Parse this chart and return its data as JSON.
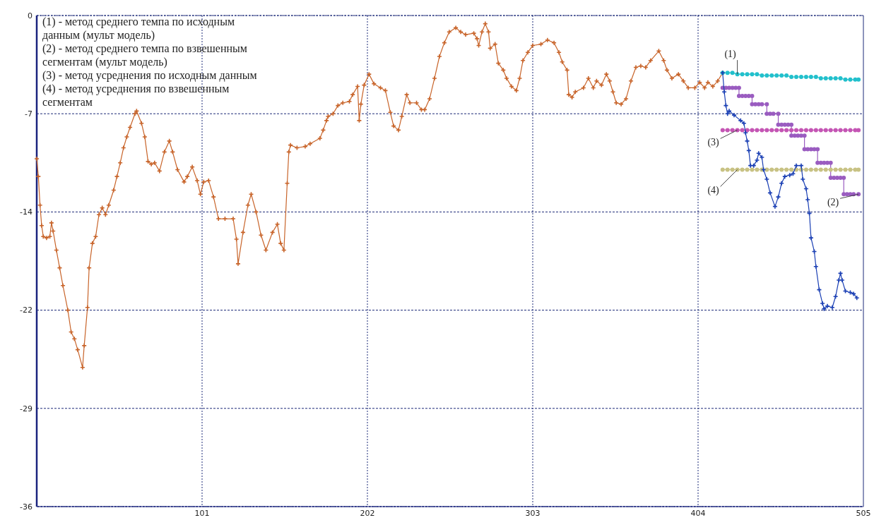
{
  "chart_data": {
    "type": "line",
    "xlim": [
      0,
      505
    ],
    "xticks": [
      101,
      202,
      303,
      404,
      505
    ],
    "ylim": [
      -36,
      0
    ],
    "yticks": [
      0,
      {
        "value": -7.2,
        "label": "-7"
      },
      {
        "value": -14.4,
        "label": "-14"
      },
      {
        "value": -21.6,
        "label": "-22"
      },
      {
        "value": -28.8,
        "label": "-29"
      },
      -36
    ],
    "grid": true,
    "marker": "cross",
    "annotations": [
      "(1) - метод среднего темпа по исходным данным (мульт модель)",
      "(2) - метод среднего темпа по взвешенным сегментам (мульт модель)",
      "(3) - метод усреднения по исходным данным",
      "(4) - метод усреднения по взвешенным сегментам"
    ],
    "series": [
      {
        "color": "#c8642a",
        "x": [
          0,
          1,
          2,
          3,
          4,
          6,
          8,
          9,
          10,
          12,
          14,
          16,
          19,
          21,
          23,
          25,
          28,
          29,
          31,
          32,
          34,
          36,
          38,
          40,
          42,
          44,
          47,
          49,
          51,
          53,
          55,
          57,
          60,
          61,
          64,
          66,
          68,
          70,
          72,
          75,
          78,
          81,
          83,
          86,
          90,
          92,
          95,
          98,
          100,
          102,
          105,
          108,
          111,
          115,
          120,
          122,
          123,
          126,
          129,
          131,
          134,
          137,
          140,
          144,
          147,
          149,
          151,
          153,
          154,
          155,
          159,
          164,
          167,
          173,
          175,
          177,
          178,
          181,
          184,
          187,
          191,
          193,
          196,
          197,
          198,
          200,
          203,
          206,
          210,
          213,
          216,
          218,
          221,
          223,
          226,
          228,
          232,
          235,
          237,
          240,
          243,
          246,
          249,
          252,
          256,
          259,
          262,
          267,
          269,
          270,
          272,
          274,
          276,
          277,
          280,
          282,
          285,
          287,
          290,
          293,
          295,
          297,
          300,
          303,
          308,
          312,
          316,
          319,
          321,
          324,
          325,
          327,
          329,
          334,
          337,
          340,
          342,
          345,
          348,
          350,
          352,
          354,
          357,
          360,
          363,
          366,
          369,
          372,
          375,
          380,
          383,
          385,
          388,
          392,
          395,
          398,
          402,
          405,
          408,
          410,
          413,
          416,
          419
        ],
        "values": [
          -10.5,
          -11.8,
          -13.9,
          -15.4,
          -16.2,
          -16.3,
          -16.2,
          -15.2,
          -15.8,
          -17.2,
          -18.5,
          -19.8,
          -21.6,
          -23.2,
          -23.7,
          -24.5,
          -25.8,
          -24.2,
          -21.4,
          -18.5,
          -16.7,
          -16.2,
          -14.6,
          -14.1,
          -14.6,
          -13.9,
          -12.8,
          -11.8,
          -10.8,
          -9.7,
          -8.9,
          -8.2,
          -7.2,
          -7.0,
          -7.9,
          -8.9,
          -10.7,
          -10.9,
          -10.8,
          -11.4,
          -10.0,
          -9.2,
          -10.0,
          -11.3,
          -12.2,
          -11.8,
          -11.1,
          -12.1,
          -13.1,
          -12.2,
          -12.1,
          -13.3,
          -14.9,
          -14.9,
          -14.9,
          -16.4,
          -18.2,
          -15.9,
          -13.9,
          -13.1,
          -14.4,
          -16.1,
          -17.2,
          -15.9,
          -15.3,
          -16.7,
          -17.2,
          -12.3,
          -10.0,
          -9.5,
          -9.7,
          -9.6,
          -9.4,
          -9.0,
          -8.4,
          -7.7,
          -7.4,
          -7.2,
          -6.6,
          -6.4,
          -6.3,
          -5.8,
          -5.2,
          -7.7,
          -6.5,
          -5.1,
          -4.3,
          -5.0,
          -5.3,
          -5.5,
          -7.1,
          -8.1,
          -8.4,
          -7.4,
          -5.8,
          -6.4,
          -6.4,
          -6.9,
          -6.9,
          -6.1,
          -4.6,
          -3.0,
          -2.0,
          -1.2,
          -0.9,
          -1.2,
          -1.4,
          -1.3,
          -1.7,
          -2.2,
          -1.2,
          -0.6,
          -1.2,
          -2.4,
          -2.1,
          -3.5,
          -4.0,
          -4.6,
          -5.2,
          -5.5,
          -4.6,
          -3.3,
          -2.7,
          -2.2,
          -2.1,
          -1.8,
          -2.0,
          -2.7,
          -3.4,
          -4.0,
          -5.8,
          -6.0,
          -5.6,
          -5.3,
          -4.6,
          -5.3,
          -4.8,
          -5.1,
          -4.3,
          -4.8,
          -5.6,
          -6.4,
          -6.5,
          -6.1,
          -4.8,
          -3.8,
          -3.7,
          -3.8,
          -3.3,
          -2.6,
          -3.3,
          -4.0,
          -4.6,
          -4.3,
          -4.8,
          -5.3,
          -5.3,
          -4.9,
          -5.3,
          -4.9,
          -5.2,
          -4.8,
          -4.2
        ]
      },
      {
        "name": "(1)",
        "color": "#22c0cc",
        "marker": "circle",
        "x": [
          419,
          422,
          425,
          428,
          431,
          434,
          437,
          440,
          443,
          446,
          449,
          452,
          455,
          458,
          461,
          464,
          467,
          470,
          473,
          476,
          479,
          482,
          485,
          488,
          491,
          494,
          497,
          500,
          502
        ],
        "values": [
          -4.2,
          -4.2,
          -4.2,
          -4.3,
          -4.3,
          -4.3,
          -4.3,
          -4.3,
          -4.4,
          -4.4,
          -4.4,
          -4.4,
          -4.4,
          -4.4,
          -4.5,
          -4.5,
          -4.5,
          -4.5,
          -4.5,
          -4.5,
          -4.6,
          -4.6,
          -4.6,
          -4.6,
          -4.6,
          -4.7,
          -4.7,
          -4.7,
          -4.7
        ]
      },
      {
        "name": "(2)",
        "color": "#9a5cc0",
        "marker": "circle",
        "x": [
          419,
          421,
          423,
          425,
          427,
          429,
          429,
          431,
          433,
          435,
          437,
          437,
          439,
          441,
          443,
          446,
          446,
          448,
          450,
          453,
          453,
          455,
          457,
          459,
          461,
          461,
          463,
          465,
          467,
          469,
          469,
          471,
          473,
          475,
          477,
          477,
          479,
          481,
          483,
          485,
          485,
          487,
          489,
          491,
          493,
          493,
          495,
          497,
          499,
          502
        ],
        "values": [
          -5.3,
          -5.3,
          -5.3,
          -5.3,
          -5.3,
          -5.3,
          -5.9,
          -5.9,
          -5.9,
          -5.9,
          -5.9,
          -6.5,
          -6.5,
          -6.5,
          -6.5,
          -6.5,
          -7.2,
          -7.2,
          -7.2,
          -7.2,
          -8.0,
          -8.0,
          -8.0,
          -8.0,
          -8.0,
          -8.8,
          -8.8,
          -8.8,
          -8.8,
          -8.8,
          -9.8,
          -9.8,
          -9.8,
          -9.8,
          -9.8,
          -10.8,
          -10.8,
          -10.8,
          -10.8,
          -10.8,
          -11.9,
          -11.9,
          -11.9,
          -11.9,
          -11.9,
          -13.1,
          -13.1,
          -13.1,
          -13.1,
          -13.1
        ]
      },
      {
        "name": "(3)",
        "color": "#c455b4",
        "marker": "circle",
        "x": [
          419,
          422,
          425,
          428,
          431,
          434,
          437,
          440,
          443,
          446,
          449,
          452,
          455,
          458,
          461,
          464,
          467,
          470,
          473,
          476,
          479,
          482,
          485,
          488,
          491,
          494,
          497,
          500,
          502
        ],
        "values": [
          -8.4,
          -8.4,
          -8.4,
          -8.4,
          -8.4,
          -8.4,
          -8.4,
          -8.4,
          -8.4,
          -8.4,
          -8.4,
          -8.4,
          -8.4,
          -8.4,
          -8.4,
          -8.4,
          -8.4,
          -8.4,
          -8.4,
          -8.4,
          -8.4,
          -8.4,
          -8.4,
          -8.4,
          -8.4,
          -8.4,
          -8.4,
          -8.4,
          -8.4
        ]
      },
      {
        "name": "(4)",
        "color": "#c8c284",
        "marker": "circle",
        "x": [
          419,
          422,
          425,
          428,
          431,
          434,
          437,
          440,
          443,
          446,
          449,
          452,
          455,
          458,
          461,
          464,
          467,
          470,
          473,
          476,
          479,
          482,
          485,
          488,
          491,
          494,
          497,
          500,
          502
        ],
        "values": [
          -11.3,
          -11.3,
          -11.3,
          -11.3,
          -11.3,
          -11.3,
          -11.3,
          -11.3,
          -11.3,
          -11.3,
          -11.3,
          -11.3,
          -11.3,
          -11.3,
          -11.3,
          -11.3,
          -11.3,
          -11.3,
          -11.3,
          -11.3,
          -11.3,
          -11.3,
          -11.3,
          -11.3,
          -11.3,
          -11.3,
          -11.3,
          -11.3,
          -11.3
        ]
      },
      {
        "color": "#1a3fb4",
        "x": [
          419,
          420,
          421,
          422,
          423,
          426,
          430,
          432,
          433,
          434,
          435,
          436,
          438,
          440,
          441,
          443,
          444,
          446,
          448,
          451,
          453,
          455,
          457,
          460,
          462,
          464,
          467,
          468,
          470,
          471,
          472,
          473,
          475,
          476,
          478,
          480,
          481,
          483,
          486,
          488,
          490,
          491,
          492,
          494,
          497,
          499,
          501
        ],
        "values": [
          -4.2,
          -5.6,
          -6.6,
          -7.2,
          -7.0,
          -7.3,
          -7.7,
          -7.9,
          -8.6,
          -9.2,
          -9.9,
          -11.0,
          -11.0,
          -10.6,
          -10.1,
          -10.4,
          -11.3,
          -12.0,
          -13.0,
          -14.0,
          -13.3,
          -12.3,
          -11.8,
          -11.7,
          -11.6,
          -11.0,
          -11.0,
          -12.0,
          -12.7,
          -13.5,
          -14.5,
          -16.3,
          -17.3,
          -18.4,
          -20.1,
          -21.1,
          -21.5,
          -21.3,
          -21.4,
          -20.6,
          -19.4,
          -18.9,
          -19.4,
          -20.2,
          -20.3,
          -20.4,
          -20.7
        ]
      }
    ]
  }
}
